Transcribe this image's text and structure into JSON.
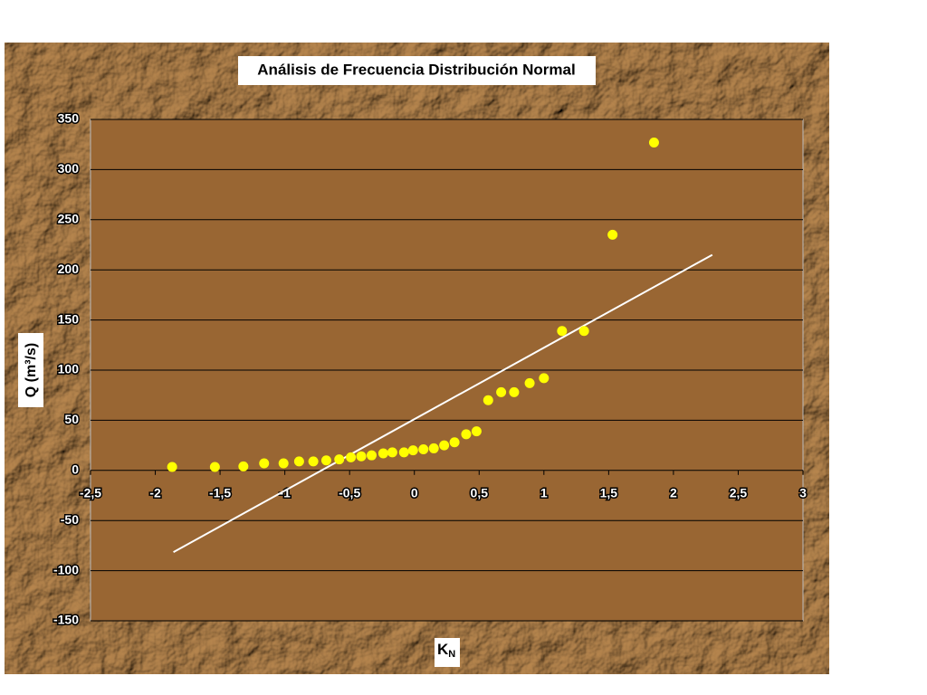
{
  "chart_data": {
    "type": "scatter",
    "title": "Análisis de Frecuencia Distribución Normal",
    "x_label": [
      "K",
      "N"
    ],
    "y_label": "Q (m³/s)",
    "xlim": [
      -2.5,
      3
    ],
    "ylim": [
      -150,
      350
    ],
    "xticks": [
      {
        "value": -2.5,
        "label": "-2,5"
      },
      -2,
      {
        "value": -1.5,
        "label": "-1,5"
      },
      -1,
      {
        "value": -0.5,
        "label": "-0,5"
      },
      0,
      {
        "value": 0.5,
        "label": "0,5"
      },
      1,
      {
        "value": 1.5,
        "label": "1,5"
      },
      2,
      {
        "value": 2.5,
        "label": "2,5"
      },
      3
    ],
    "yticks": [
      -150,
      -100,
      -50,
      0,
      50,
      100,
      150,
      200,
      250,
      300,
      350
    ],
    "grid": true,
    "series": [
      {
        "color": "#ffff00",
        "x": [
          -1.87,
          -1.54,
          -1.32,
          -1.16,
          -1.01,
          -0.89,
          -0.78,
          -0.68,
          -0.58,
          -0.49,
          -0.41,
          -0.33,
          -0.24,
          -0.17,
          -0.08,
          -0.01,
          0.07,
          0.15,
          0.23,
          0.31,
          0.4,
          0.48,
          0.57,
          0.67,
          0.77,
          0.89,
          1.0,
          1.14,
          1.31,
          1.53,
          1.85
        ],
        "values": [
          3.4,
          3.4,
          4,
          7,
          7,
          9,
          9,
          10,
          11,
          13,
          14,
          15,
          17,
          18,
          18,
          20,
          21,
          22,
          25,
          28,
          36,
          39,
          70,
          78,
          78,
          87,
          92,
          139,
          139,
          235,
          327
        ]
      }
    ],
    "trend": {
      "color": "#ffffff",
      "x": [
        -1.86,
        2.3
      ],
      "values": [
        -81.5,
        215
      ]
    }
  }
}
